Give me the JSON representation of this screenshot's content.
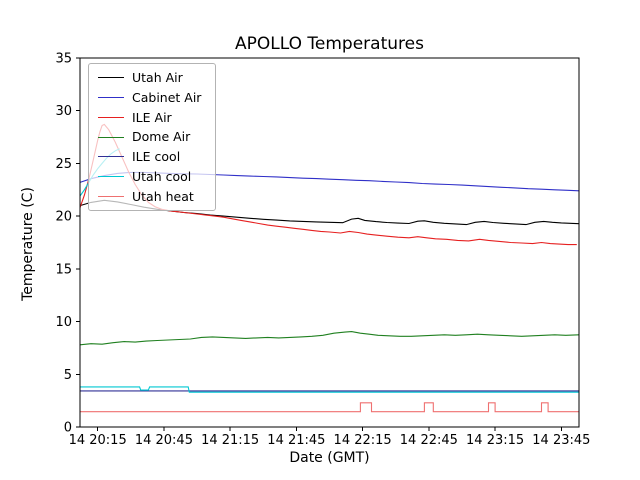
{
  "figure": {
    "background": "#ffffff",
    "axes_color": "#000000"
  },
  "chart_data": {
    "type": "line",
    "title": "APOLLO Temperatures",
    "xlabel": "Date (GMT)",
    "ylabel": "Temperature (C)",
    "grid": false,
    "legend_position": "upper left",
    "x_unit": "minutes after 14 20:00 GMT (labels show day hour:minute)",
    "xlim": [
      7,
      233
    ],
    "ylim": [
      0,
      35
    ],
    "x_ticks": [
      {
        "t": 15,
        "label": "14 20:15"
      },
      {
        "t": 45,
        "label": "14 20:45"
      },
      {
        "t": 75,
        "label": "14 21:15"
      },
      {
        "t": 105,
        "label": "14 21:45"
      },
      {
        "t": 135,
        "label": "14 22:15"
      },
      {
        "t": 165,
        "label": "14 22:45"
      },
      {
        "t": 195,
        "label": "14 23:15"
      },
      {
        "t": 225,
        "label": "14 23:45"
      }
    ],
    "y_ticks": [
      0,
      5,
      10,
      15,
      20,
      25,
      30,
      35
    ],
    "series": [
      {
        "name": "Utah Air",
        "color": "#000000",
        "segments": [
          [
            [
              7,
              21.0
            ],
            [
              12,
              21.3
            ],
            [
              18,
              21.5
            ],
            [
              24,
              21.35
            ],
            [
              30,
              21.1
            ],
            [
              36,
              20.85
            ],
            [
              42,
              20.65
            ],
            [
              48,
              20.5
            ],
            [
              54,
              20.35
            ],
            [
              60,
              20.25
            ],
            [
              66,
              20.1
            ],
            [
              72,
              20.0
            ],
            [
              78,
              19.9
            ],
            [
              84,
              19.8
            ],
            [
              90,
              19.7
            ],
            [
              96,
              19.62
            ],
            [
              102,
              19.55
            ],
            [
              108,
              19.5
            ],
            [
              114,
              19.45
            ],
            [
              120,
              19.42
            ],
            [
              126,
              19.38
            ],
            [
              130,
              19.72
            ],
            [
              133,
              19.8
            ],
            [
              136,
              19.6
            ],
            [
              141,
              19.48
            ],
            [
              146,
              19.4
            ],
            [
              151,
              19.34
            ],
            [
              156,
              19.3
            ],
            [
              160,
              19.52
            ],
            [
              163,
              19.56
            ],
            [
              167,
              19.42
            ],
            [
              172,
              19.32
            ],
            [
              177,
              19.26
            ],
            [
              182,
              19.2
            ],
            [
              186,
              19.42
            ],
            [
              190,
              19.5
            ],
            [
              194,
              19.4
            ],
            [
              199,
              19.32
            ],
            [
              204,
              19.26
            ],
            [
              209,
              19.2
            ],
            [
              213,
              19.42
            ],
            [
              217,
              19.5
            ],
            [
              221,
              19.42
            ],
            [
              225,
              19.36
            ],
            [
              229,
              19.32
            ],
            [
              233,
              19.28
            ]
          ]
        ]
      },
      {
        "name": "Cabinet Air",
        "color": "#3030c8",
        "segments": [
          [
            [
              7,
              23.2
            ],
            [
              12,
              23.55
            ],
            [
              18,
              23.85
            ],
            [
              24,
              24.05
            ],
            [
              30,
              24.15
            ],
            [
              36,
              24.15
            ],
            [
              42,
              24.1
            ],
            [
              48,
              24.05
            ],
            [
              54,
              24.02
            ],
            [
              60,
              24.0
            ],
            [
              66,
              23.95
            ],
            [
              72,
              23.9
            ],
            [
              78,
              23.85
            ],
            [
              84,
              23.8
            ],
            [
              90,
              23.76
            ],
            [
              96,
              23.72
            ],
            [
              102,
              23.66
            ],
            [
              108,
              23.6
            ],
            [
              114,
              23.56
            ],
            [
              120,
              23.5
            ],
            [
              126,
              23.46
            ],
            [
              132,
              23.4
            ],
            [
              138,
              23.36
            ],
            [
              144,
              23.3
            ],
            [
              150,
              23.24
            ],
            [
              156,
              23.18
            ],
            [
              162,
              23.1
            ],
            [
              168,
              23.04
            ],
            [
              174,
              23.0
            ],
            [
              180,
              22.94
            ],
            [
              186,
              22.88
            ],
            [
              192,
              22.8
            ],
            [
              198,
              22.74
            ],
            [
              204,
              22.68
            ],
            [
              210,
              22.6
            ],
            [
              216,
              22.56
            ],
            [
              222,
              22.5
            ],
            [
              228,
              22.45
            ],
            [
              233,
              22.4
            ]
          ]
        ]
      },
      {
        "name": "ILE Air",
        "color": "#e62020",
        "segments": [
          [
            [
              7,
              20.8
            ],
            [
              9,
              22.0
            ],
            [
              11,
              23.5
            ],
            [
              13,
              25.3
            ],
            [
              15,
              27.2
            ],
            [
              16,
              28.0
            ],
            [
              17,
              28.6
            ],
            [
              18,
              28.7
            ],
            [
              20,
              28.2
            ],
            [
              23,
              27.0
            ],
            [
              26,
              25.6
            ],
            [
              29,
              24.2
            ],
            [
              32,
              23.0
            ],
            [
              35,
              22.0
            ],
            [
              38,
              21.3
            ],
            [
              41,
              20.9
            ],
            [
              44,
              20.65
            ],
            [
              48,
              20.5
            ],
            [
              52,
              20.4
            ],
            [
              56,
              20.3
            ],
            [
              60,
              20.2
            ],
            [
              64,
              20.1
            ],
            [
              68,
              20.0
            ],
            [
              72,
              19.9
            ],
            [
              76,
              19.75
            ],
            [
              80,
              19.6
            ],
            [
              84,
              19.45
            ],
            [
              88,
              19.3
            ],
            [
              92,
              19.15
            ],
            [
              96,
              19.05
            ],
            [
              100,
              18.95
            ],
            [
              104,
              18.85
            ],
            [
              108,
              18.75
            ],
            [
              112,
              18.65
            ],
            [
              116,
              18.55
            ],
            [
              120,
              18.5
            ],
            [
              125,
              18.4
            ],
            [
              129,
              18.55
            ],
            [
              133,
              18.45
            ],
            [
              137,
              18.3
            ],
            [
              141,
              18.2
            ],
            [
              146,
              18.1
            ],
            [
              151,
              18.0
            ],
            [
              156,
              17.95
            ],
            [
              160,
              18.05
            ],
            [
              164,
              17.95
            ],
            [
              168,
              17.85
            ],
            [
              173,
              17.8
            ],
            [
              178,
              17.7
            ],
            [
              183,
              17.65
            ],
            [
              188,
              17.8
            ],
            [
              192,
              17.7
            ],
            [
              197,
              17.6
            ],
            [
              202,
              17.5
            ],
            [
              207,
              17.45
            ],
            [
              212,
              17.4
            ],
            [
              216,
              17.5
            ],
            [
              220,
              17.4
            ],
            [
              224,
              17.35
            ],
            [
              228,
              17.3
            ],
            [
              232,
              17.3
            ]
          ]
        ]
      },
      {
        "name": "Dome Air",
        "color": "#208020",
        "segments": [
          [
            [
              7,
              7.8
            ],
            [
              12,
              7.9
            ],
            [
              17,
              7.85
            ],
            [
              22,
              8.0
            ],
            [
              27,
              8.1
            ],
            [
              32,
              8.05
            ],
            [
              37,
              8.15
            ],
            [
              42,
              8.2
            ],
            [
              47,
              8.25
            ],
            [
              52,
              8.3
            ],
            [
              57,
              8.35
            ],
            [
              62,
              8.5
            ],
            [
              67,
              8.55
            ],
            [
              72,
              8.5
            ],
            [
              77,
              8.45
            ],
            [
              82,
              8.4
            ],
            [
              87,
              8.45
            ],
            [
              92,
              8.5
            ],
            [
              97,
              8.45
            ],
            [
              102,
              8.5
            ],
            [
              107,
              8.55
            ],
            [
              112,
              8.6
            ],
            [
              117,
              8.7
            ],
            [
              122,
              8.9
            ],
            [
              127,
              9.0
            ],
            [
              130,
              9.05
            ],
            [
              134,
              8.9
            ],
            [
              138,
              8.8
            ],
            [
              142,
              8.7
            ],
            [
              147,
              8.65
            ],
            [
              152,
              8.6
            ],
            [
              157,
              8.6
            ],
            [
              162,
              8.65
            ],
            [
              167,
              8.7
            ],
            [
              172,
              8.75
            ],
            [
              177,
              8.7
            ],
            [
              182,
              8.75
            ],
            [
              187,
              8.8
            ],
            [
              192,
              8.75
            ],
            [
              197,
              8.7
            ],
            [
              202,
              8.65
            ],
            [
              207,
              8.6
            ],
            [
              212,
              8.65
            ],
            [
              217,
              8.7
            ],
            [
              222,
              8.75
            ],
            [
              227,
              8.7
            ],
            [
              233,
              8.75
            ]
          ]
        ]
      },
      {
        "name": "ILE cool",
        "color": "#303096",
        "segments": [
          [
            [
              7,
              3.42
            ],
            [
              233,
              3.42
            ]
          ]
        ]
      },
      {
        "name": "Utah cool",
        "color": "#00c8d2",
        "segments": [
          [
            [
              7,
              21.9
            ],
            [
              9,
              22.5
            ],
            [
              11,
              23.2
            ],
            [
              13,
              23.9
            ],
            [
              15,
              24.5
            ],
            [
              17,
              25.0
            ],
            [
              19,
              25.5
            ],
            [
              21,
              25.9
            ],
            [
              23,
              26.2
            ],
            [
              25,
              26.4
            ]
          ],
          [
            [
              7,
              3.8
            ],
            [
              34,
              3.8
            ],
            [
              34.5,
              3.5
            ],
            [
              38,
              3.5
            ],
            [
              38.5,
              3.8
            ],
            [
              56,
              3.8
            ],
            [
              56.5,
              3.3
            ],
            [
              233,
              3.3
            ]
          ]
        ]
      },
      {
        "name": "Utah heat",
        "color": "#ef7070",
        "segments": [
          [
            [
              7,
              1.45
            ],
            [
              134,
              1.45
            ],
            [
              134,
              2.3
            ],
            [
              139,
              2.3
            ],
            [
              139,
              1.45
            ],
            [
              163,
              1.45
            ],
            [
              163,
              2.3
            ],
            [
              167,
              2.3
            ],
            [
              167,
              1.45
            ],
            [
              192,
              1.45
            ],
            [
              192,
              2.3
            ],
            [
              195,
              2.3
            ],
            [
              195,
              1.45
            ],
            [
              216,
              1.45
            ],
            [
              216,
              2.3
            ],
            [
              219,
              2.3
            ],
            [
              219,
              1.45
            ],
            [
              233,
              1.45
            ]
          ]
        ]
      }
    ]
  },
  "legend": {
    "entries": [
      "Utah Air",
      "Cabinet Air",
      "ILE Air",
      "Dome Air",
      "ILE cool",
      "Utah cool",
      "Utah heat"
    ]
  }
}
